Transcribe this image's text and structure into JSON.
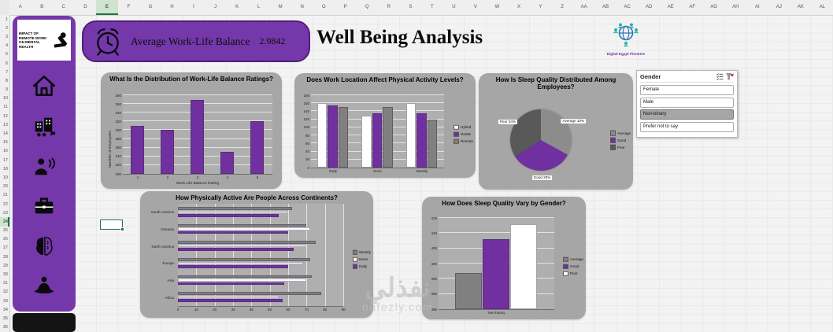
{
  "colors": {
    "accent": "#7030A0",
    "sidebar": "#7438AA",
    "card": "#A6A6A6",
    "selection_green": "#217346",
    "gray_series": "#808080",
    "dark_gray_series": "#595959",
    "white_series": "#FFFFFF"
  },
  "grid": {
    "columns": [
      "A",
      "B",
      "C",
      "D",
      "E",
      "F",
      "G",
      "H",
      "I",
      "J",
      "K",
      "L",
      "M",
      "N",
      "O",
      "P",
      "Q",
      "R",
      "S",
      "T",
      "U",
      "V",
      "W",
      "X",
      "Y",
      "Z",
      "AA",
      "AB",
      "AC",
      "AD",
      "AE",
      "AF",
      "AG",
      "AH",
      "AI",
      "AJ",
      "AK",
      "AL"
    ],
    "rows": [
      "1",
      "2",
      "3",
      "4",
      "5",
      "6",
      "7",
      "8",
      "9",
      "10",
      "11",
      "12",
      "13",
      "14",
      "15",
      "16",
      "17",
      "18",
      "19",
      "20",
      "21",
      "22",
      "23",
      "24",
      "25",
      "26",
      "27",
      "28",
      "29",
      "30",
      "31",
      "32",
      "33",
      "34",
      "35",
      "36"
    ],
    "selected_column": "E",
    "selected_row": "24"
  },
  "sidebar": {
    "poster_text": "Impact of Remote Work on Mental Health",
    "icons": [
      "home-icon",
      "office-people-icon",
      "support-person-icon",
      "briefcase-icon",
      "brain-icon",
      "meditation-icon"
    ]
  },
  "banner": {
    "label": "Average Work-Life Balance",
    "value": "2.9842"
  },
  "page": {
    "title": "Well Being Analysis"
  },
  "logo": {
    "caption": "Digital Egypt Pioneers"
  },
  "slicer": {
    "title": "Gender",
    "items": [
      {
        "label": "Female",
        "selected": false
      },
      {
        "label": "Male",
        "selected": false
      },
      {
        "label": "Non-binary",
        "selected": true
      },
      {
        "label": "Prefer not to say",
        "selected": false
      }
    ]
  },
  "watermark": {
    "word": "نفذلي",
    "domain": "nafezly.com"
  },
  "chart_data": [
    {
      "type": "bar",
      "title": "What Is the Distribution of Work-Life Balance Ratings?",
      "categories": [
        "1",
        "2",
        "3",
        "4",
        "5"
      ],
      "values": [
        310,
        300,
        370,
        250,
        320
      ],
      "xlabel": "Work Life Balance Rating",
      "ylabel": "Number of employees",
      "ylim": [
        200,
        380
      ],
      "ytick_step": 20,
      "bar_color": "#7030A0",
      "grid": true
    },
    {
      "type": "bar",
      "title": "Does Work Location Affect Physical Activity Levels?",
      "categories": [
        "Daily",
        "None",
        "Weekly"
      ],
      "series": [
        {
          "name": "Hybrid",
          "color": "#FFFFFF",
          "values": [
            160,
            130,
            160
          ]
        },
        {
          "name": "Onsite",
          "color": "#7030A0",
          "values": [
            155,
            135,
            135
          ]
        },
        {
          "name": "Remote",
          "color": "#808080",
          "values": [
            150,
            150,
            120
          ]
        }
      ],
      "ylim": [
        0,
        180
      ],
      "ytick_step": 20,
      "legend_position": "right",
      "grid": true
    },
    {
      "type": "pie",
      "title": "How Is Sleep Quality Distributed Among Employees?",
      "slices": [
        {
          "name": "Average",
          "pct": 33,
          "color": "#8C8C8C"
        },
        {
          "name": "Good",
          "pct": 33,
          "color": "#7030A0"
        },
        {
          "name": "Poor",
          "pct": 34,
          "color": "#595959"
        }
      ],
      "legend_position": "right"
    },
    {
      "type": "hbar",
      "title": "How Physically Active Are People Across Continents?",
      "categories": [
        "South America",
        "Oceania",
        "North America",
        "Europe",
        "Asia",
        "Africa"
      ],
      "series": [
        {
          "name": "Weekly",
          "color": "#808080",
          "values": [
            62,
            70,
            75,
            72,
            73,
            78
          ]
        },
        {
          "name": "None",
          "color": "#FFFFFF",
          "values": [
            60,
            72,
            70,
            68,
            70,
            55
          ]
        },
        {
          "name": "Daily",
          "color": "#7030A0",
          "values": [
            55,
            60,
            63,
            60,
            58,
            57
          ]
        }
      ],
      "xlim": [
        0,
        90
      ],
      "xtick_step": 10,
      "legend_position": "right",
      "grid": true
    },
    {
      "type": "bar",
      "title": "How Does Sleep Quality Vary by Gender?",
      "categories": [
        "Non-binary"
      ],
      "series": [
        {
          "name": "Average",
          "color": "#808080",
          "values": [
            397
          ]
        },
        {
          "name": "Good",
          "color": "#7030A0",
          "values": [
            408
          ]
        },
        {
          "name": "Poor",
          "color": "#FFFFFF",
          "values": [
            413
          ]
        }
      ],
      "ylim": [
        385,
        415
      ],
      "ytick_step": 5,
      "legend_position": "right",
      "grid": true
    }
  ]
}
